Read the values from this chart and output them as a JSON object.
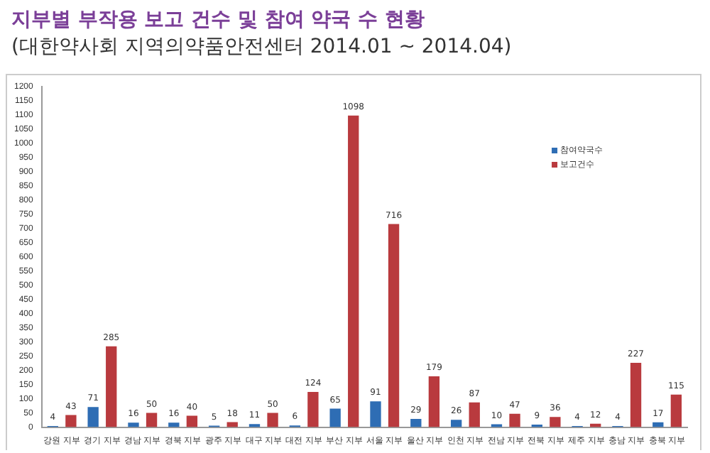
{
  "chart_data": {
    "type": "bar",
    "title": "지부별 부작용 보고 건수 및 참여 약국 수 현황",
    "subtitle": "(대한약사회 지역의약품안전센터 2014.01 ~ 2014.04)",
    "categories": [
      "강원 지부",
      "경기 지부",
      "경남 지부",
      "경북 지부",
      "광주 지부",
      "대구 지부",
      "대전 지부",
      "부산 지부",
      "서울 지부",
      "울산 지부",
      "인천 지부",
      "전남 지부",
      "전북 지부",
      "제주 지부",
      "충남 지부",
      "충북 지부"
    ],
    "series": [
      {
        "name": "참여약국수",
        "color": "#2e6db4",
        "values": [
          4,
          71,
          16,
          16,
          5,
          11,
          6,
          65,
          91,
          29,
          26,
          10,
          9,
          4,
          4,
          17
        ]
      },
      {
        "name": "보고건수",
        "color": "#b93a3e",
        "values": [
          43,
          285,
          50,
          40,
          18,
          50,
          124,
          1098,
          716,
          179,
          87,
          47,
          36,
          12,
          227,
          115
        ]
      }
    ],
    "ylim": [
      0,
      1200
    ],
    "yticks": [
      0,
      50,
      100,
      150,
      200,
      250,
      300,
      350,
      400,
      450,
      500,
      550,
      600,
      650,
      700,
      750,
      800,
      850,
      900,
      950,
      1000,
      1050,
      1100,
      1150,
      1200
    ],
    "grid": false,
    "legend": "top right",
    "data_labels": true
  }
}
